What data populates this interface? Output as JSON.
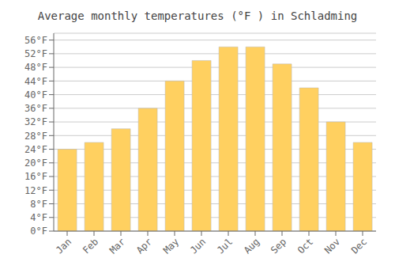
{
  "chart_data": {
    "type": "bar",
    "title": "Average monthly temperatures (°F ) in Schladming",
    "categories": [
      "Jan",
      "Feb",
      "Mar",
      "Apr",
      "May",
      "Jun",
      "Jul",
      "Aug",
      "Sep",
      "Oct",
      "Nov",
      "Dec"
    ],
    "values": [
      24,
      26,
      30,
      36,
      44,
      50,
      54,
      54,
      49,
      42,
      32,
      26
    ],
    "color": "#FFD060",
    "ylim": [
      0,
      58
    ],
    "yticks": [
      {
        "value": 0,
        "label": "0°F"
      },
      {
        "value": 4,
        "label": "4°F"
      },
      {
        "value": 8,
        "label": "8°F"
      },
      {
        "value": 12,
        "label": "12°F"
      },
      {
        "value": 16,
        "label": "16°F"
      },
      {
        "value": 20,
        "label": "20°F"
      },
      {
        "value": 24,
        "label": "24°F"
      },
      {
        "value": 28,
        "label": "28°F"
      },
      {
        "value": 32,
        "label": "32°F"
      },
      {
        "value": 36,
        "label": "36°F"
      },
      {
        "value": 40,
        "label": "40°F"
      },
      {
        "value": 44,
        "label": "44°F"
      },
      {
        "value": 48,
        "label": "48°F"
      },
      {
        "value": 52,
        "label": "52°F"
      },
      {
        "value": 56,
        "label": "56°F"
      }
    ],
    "grid": true
  }
}
